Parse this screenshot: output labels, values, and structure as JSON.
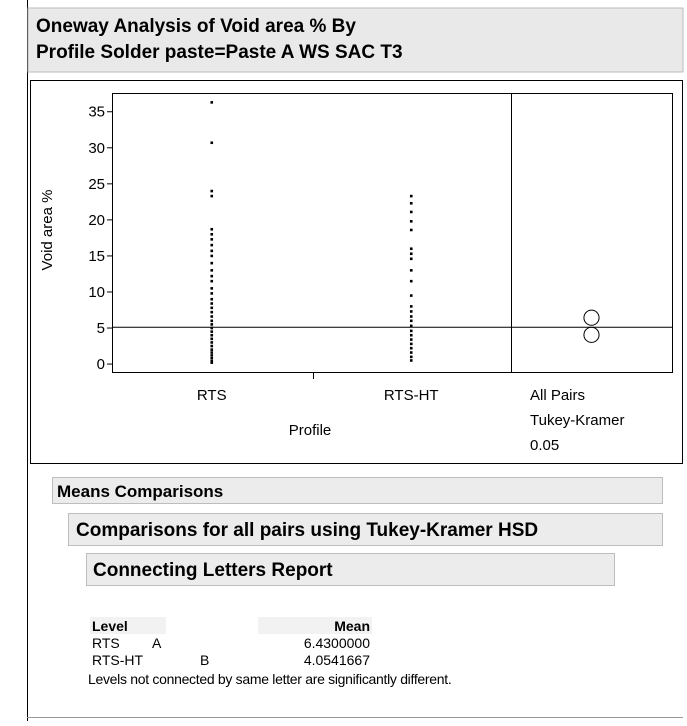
{
  "header": {
    "title_lines": [
      "Oneway Analysis of Void area % By",
      "Profile Solder paste=Paste A WS SAC T3"
    ]
  },
  "chart_data": {
    "type": "scatter",
    "ylabel": "Void area %",
    "xlabel": "Profile",
    "categories": [
      "RTS",
      "RTS-HT"
    ],
    "series": [
      {
        "name": "RTS",
        "color": "#000000",
        "values": [
          36.3,
          30.7,
          24,
          23.3,
          18.7,
          18,
          17.3,
          16.5,
          15.7,
          15,
          14,
          13,
          12.2,
          11.5,
          10.5,
          9.8,
          9,
          8.4,
          7.8,
          7.2,
          6.6,
          6,
          5.5,
          5,
          4.5,
          4,
          3.5,
          3,
          2.5,
          2,
          1.6,
          1.2,
          0.8,
          0.4,
          0.2
        ]
      },
      {
        "name": "RTS-HT",
        "color": "#000000",
        "values": [
          23.3,
          22.3,
          21.1,
          19.8,
          18.6,
          16,
          15.3,
          14.6,
          13,
          11.5,
          9.5,
          8,
          7.3,
          6.6,
          6,
          5.3,
          4.6,
          4,
          3.4,
          2.8,
          2.2,
          1.6,
          1,
          0.5
        ]
      }
    ],
    "ylim": [
      -1.1,
      37.6
    ],
    "yticks": [
      0,
      5,
      10,
      15,
      20,
      25,
      30,
      35
    ],
    "reference_line": 5.1,
    "circles": [
      {
        "center": 6.43,
        "radius": 1.05
      },
      {
        "center": 4.0541667,
        "radius": 1.05
      }
    ],
    "circle_labels": [
      "All Pairs",
      "Tukey-Kramer",
      "0.05"
    ]
  },
  "report": {
    "means_comparisons": "Means Comparisons",
    "comparisons_title": "Comparisons for all pairs using Tukey-Kramer HSD",
    "letters_title": "Connecting Letters Report",
    "table": {
      "columns": [
        "Level",
        "Mean"
      ],
      "rows": [
        [
          "RTS",
          "A",
          "6.4300000"
        ],
        [
          "RTS-HT",
          "B",
          "4.0541667"
        ]
      ]
    },
    "note": "Levels not connected by same letter are significantly different."
  }
}
